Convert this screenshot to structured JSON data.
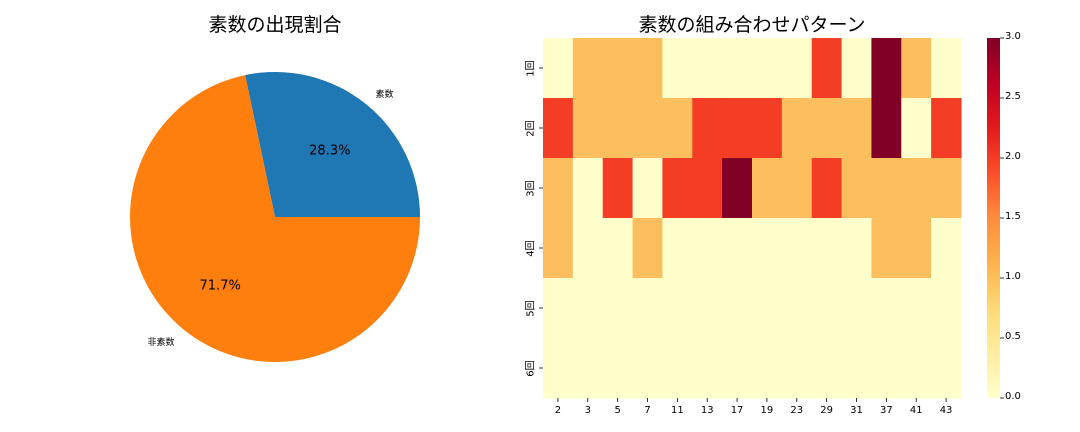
{
  "pie": {
    "title": "素数の出現割合",
    "labels": [
      "素数",
      "非素数"
    ],
    "pct_labels": [
      "28.3%",
      "71.7%"
    ]
  },
  "heatmap": {
    "title": "素数の組み合わせパターン"
  },
  "chart_data": [
    {
      "type": "pie",
      "title": "素数の出現割合",
      "categories": [
        "素数",
        "非素数"
      ],
      "values": [
        28.3,
        71.7
      ],
      "colors": [
        "#1f77b4",
        "#ff7f0e"
      ],
      "start_angle": 0,
      "autopct": [
        "28.3%",
        "71.7%"
      ]
    },
    {
      "type": "heatmap",
      "title": "素数の組み合わせパターン",
      "x": [
        "2",
        "3",
        "5",
        "7",
        "11",
        "13",
        "17",
        "19",
        "23",
        "29",
        "31",
        "37",
        "41",
        "43"
      ],
      "y": [
        "1回",
        "2回",
        "3回",
        "4回",
        "5回",
        "6回"
      ],
      "values": [
        [
          0,
          1,
          1,
          1,
          0,
          0,
          0,
          0,
          0,
          2,
          0,
          3,
          1,
          0
        ],
        [
          2,
          1,
          1,
          1,
          1,
          2,
          2,
          2,
          1,
          1,
          1,
          3,
          0,
          2
        ],
        [
          1,
          0,
          2,
          0,
          2,
          2,
          3,
          1,
          1,
          2,
          1,
          1,
          1,
          1
        ],
        [
          1,
          0,
          0,
          1,
          0,
          0,
          0,
          0,
          0,
          0,
          0,
          1,
          1,
          0
        ],
        [
          0,
          0,
          0,
          0,
          0,
          0,
          0,
          0,
          0,
          0,
          0,
          0,
          0,
          0
        ],
        [
          0,
          0,
          0,
          0,
          0,
          0,
          0,
          0,
          0,
          0,
          0,
          0,
          0,
          0
        ]
      ],
      "colormap": "YlOrRd",
      "value_colors": {
        "0": "#ffffcc",
        "1": "#fdbf5e",
        "2": "#f43d25",
        "3": "#800026"
      },
      "colorbar": {
        "range": [
          0.0,
          3.0
        ],
        "ticks": [
          "0.0",
          "0.5",
          "1.0",
          "1.5",
          "2.0",
          "2.5",
          "3.0"
        ]
      }
    }
  ]
}
